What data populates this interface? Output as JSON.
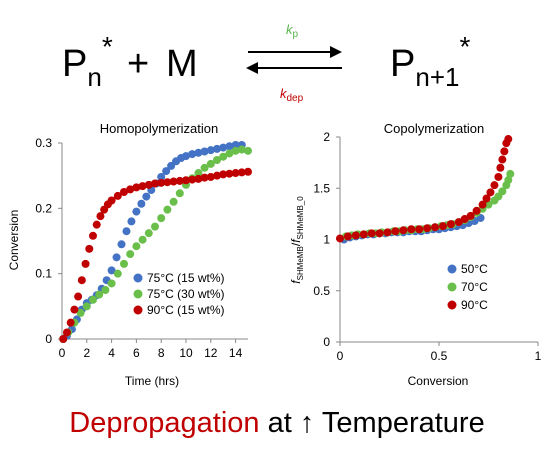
{
  "scheme": {
    "reactant_base": "P",
    "reactant_sub": "n",
    "reactant_sup": "*",
    "plus": "+",
    "monomer": "M",
    "product_base": "P",
    "product_sub": "n+1",
    "product_sup": "*",
    "kp_base": "k",
    "kp_sub": "p",
    "kp_color": "#55b54a",
    "kdep_base": "k",
    "kdep_sub": "dep",
    "kdep_color": "#c00000"
  },
  "footer": {
    "red_text": "Depropagation",
    "red_color": "#c00000",
    "black_text": "at",
    "arrow": "↑",
    "tail_text": "Temperature"
  },
  "chart_data": [
    {
      "type": "scatter",
      "title": "Homopolymerization",
      "xlabel": "Time (hrs)",
      "ylabel": "Conversion",
      "xlim": [
        0,
        15
      ],
      "ylim": [
        0,
        0.3
      ],
      "xticks": [
        "0",
        "2",
        "4",
        "6",
        "8",
        "10",
        "12",
        "14"
      ],
      "yticks": [
        "0",
        "0.1",
        "0.2",
        "0.3"
      ],
      "legend_position": "bottom-right",
      "series": [
        {
          "name": "75°C (15 wt%)",
          "color": "#4472c4",
          "points": [
            [
              0.1,
              0.0
            ],
            [
              0.4,
              0.005
            ],
            [
              0.8,
              0.015
            ],
            [
              1.2,
              0.03
            ],
            [
              1.6,
              0.045
            ],
            [
              2.0,
              0.055
            ],
            [
              2.4,
              0.06
            ],
            [
              2.8,
              0.067
            ],
            [
              3.2,
              0.077
            ],
            [
              3.6,
              0.09
            ],
            [
              4.0,
              0.105
            ],
            [
              4.4,
              0.125
            ],
            [
              4.8,
              0.145
            ],
            [
              5.2,
              0.165
            ],
            [
              5.6,
              0.18
            ],
            [
              6.0,
              0.195
            ],
            [
              6.4,
              0.207
            ],
            [
              6.8,
              0.218
            ],
            [
              7.2,
              0.228
            ],
            [
              7.6,
              0.238
            ],
            [
              8.0,
              0.248
            ],
            [
              8.4,
              0.257
            ],
            [
              8.8,
              0.265
            ],
            [
              9.2,
              0.272
            ],
            [
              9.6,
              0.277
            ],
            [
              10.0,
              0.28
            ],
            [
              10.5,
              0.283
            ],
            [
              11.0,
              0.285
            ],
            [
              11.5,
              0.287
            ],
            [
              12.0,
              0.289
            ],
            [
              12.5,
              0.291
            ],
            [
              13.0,
              0.293
            ],
            [
              13.5,
              0.295
            ],
            [
              14.0,
              0.297
            ],
            [
              14.5,
              0.297
            ]
          ]
        },
        {
          "name": "75°C (30 wt%)",
          "color": "#6abf4b",
          "points": [
            [
              0.1,
              0.0
            ],
            [
              0.5,
              0.01
            ],
            [
              1.0,
              0.025
            ],
            [
              1.5,
              0.04
            ],
            [
              2.0,
              0.05
            ],
            [
              2.5,
              0.06
            ],
            [
              3.0,
              0.068
            ],
            [
              3.5,
              0.075
            ],
            [
              4.0,
              0.085
            ],
            [
              4.5,
              0.1
            ],
            [
              5.0,
              0.115
            ],
            [
              5.5,
              0.13
            ],
            [
              6.0,
              0.142
            ],
            [
              6.5,
              0.152
            ],
            [
              7.0,
              0.162
            ],
            [
              7.5,
              0.172
            ],
            [
              8.0,
              0.185
            ],
            [
              8.5,
              0.198
            ],
            [
              9.0,
              0.21
            ],
            [
              9.5,
              0.223
            ],
            [
              10.0,
              0.236
            ],
            [
              10.5,
              0.246
            ],
            [
              11.0,
              0.254
            ],
            [
              11.5,
              0.262
            ],
            [
              12.0,
              0.268
            ],
            [
              12.5,
              0.274
            ],
            [
              13.0,
              0.279
            ],
            [
              13.5,
              0.284
            ],
            [
              14.0,
              0.288
            ],
            [
              14.5,
              0.29
            ],
            [
              15.0,
              0.288
            ]
          ]
        },
        {
          "name": "90°C (15 wt%)",
          "color": "#c00000",
          "points": [
            [
              0.1,
              0.0
            ],
            [
              0.4,
              0.01
            ],
            [
              0.7,
              0.025
            ],
            [
              1.0,
              0.045
            ],
            [
              1.3,
              0.065
            ],
            [
              1.6,
              0.09
            ],
            [
              1.9,
              0.115
            ],
            [
              2.2,
              0.138
            ],
            [
              2.5,
              0.158
            ],
            [
              2.8,
              0.175
            ],
            [
              3.1,
              0.188
            ],
            [
              3.4,
              0.198
            ],
            [
              3.7,
              0.206
            ],
            [
              4.0,
              0.212
            ],
            [
              4.5,
              0.219
            ],
            [
              5.0,
              0.225
            ],
            [
              5.5,
              0.229
            ],
            [
              6.0,
              0.232
            ],
            [
              6.5,
              0.234
            ],
            [
              7.0,
              0.236
            ],
            [
              7.5,
              0.238
            ],
            [
              8.0,
              0.239
            ],
            [
              8.5,
              0.24
            ],
            [
              9.0,
              0.241
            ],
            [
              9.5,
              0.242
            ],
            [
              10.0,
              0.243
            ],
            [
              10.5,
              0.244
            ],
            [
              11.0,
              0.245
            ],
            [
              11.5,
              0.247
            ],
            [
              12.0,
              0.248
            ],
            [
              12.5,
              0.25
            ],
            [
              13.0,
              0.252
            ],
            [
              13.5,
              0.253
            ],
            [
              14.0,
              0.254
            ],
            [
              14.5,
              0.255
            ],
            [
              15.0,
              0.256
            ]
          ]
        }
      ]
    },
    {
      "type": "scatter",
      "title": "Copolymerization",
      "xlabel": "Conversion",
      "ylabel_parts": {
        "f1": "f",
        "f1_sub": "SHMeMB",
        "slash": "/",
        "f2": "f",
        "f2_sub": "SHMeMB_0"
      },
      "xlim": [
        0,
        1
      ],
      "ylim": [
        0,
        2
      ],
      "xticks": [
        "0",
        "0.5",
        "1"
      ],
      "yticks": [
        "0",
        "0.5",
        "1",
        "1.5",
        "2"
      ],
      "legend_position": "bottom-right",
      "series": [
        {
          "name": "50°C",
          "color": "#4472c4",
          "points": [
            [
              0.02,
              1.0
            ],
            [
              0.05,
              1.02
            ],
            [
              0.08,
              1.03
            ],
            [
              0.11,
              1.04
            ],
            [
              0.14,
              1.05
            ],
            [
              0.17,
              1.05
            ],
            [
              0.2,
              1.06
            ],
            [
              0.23,
              1.06
            ],
            [
              0.26,
              1.07
            ],
            [
              0.29,
              1.07
            ],
            [
              0.32,
              1.07
            ],
            [
              0.35,
              1.08
            ],
            [
              0.38,
              1.08
            ],
            [
              0.41,
              1.08
            ],
            [
              0.44,
              1.09
            ],
            [
              0.47,
              1.1
            ],
            [
              0.5,
              1.1
            ],
            [
              0.53,
              1.11
            ],
            [
              0.56,
              1.12
            ],
            [
              0.59,
              1.13
            ],
            [
              0.62,
              1.14
            ],
            [
              0.65,
              1.16
            ],
            [
              0.68,
              1.18
            ],
            [
              0.71,
              1.21
            ]
          ]
        },
        {
          "name": "70°C",
          "color": "#6abf4b",
          "points": [
            [
              0.03,
              1.03
            ],
            [
              0.06,
              1.04
            ],
            [
              0.09,
              1.05
            ],
            [
              0.12,
              1.05
            ],
            [
              0.15,
              1.06
            ],
            [
              0.18,
              1.06
            ],
            [
              0.21,
              1.07
            ],
            [
              0.24,
              1.07
            ],
            [
              0.27,
              1.08
            ],
            [
              0.3,
              1.08
            ],
            [
              0.33,
              1.09
            ],
            [
              0.36,
              1.09
            ],
            [
              0.39,
              1.1
            ],
            [
              0.42,
              1.1
            ],
            [
              0.45,
              1.11
            ],
            [
              0.48,
              1.12
            ],
            [
              0.51,
              1.13
            ],
            [
              0.54,
              1.14
            ],
            [
              0.57,
              1.15
            ],
            [
              0.6,
              1.17
            ],
            [
              0.63,
              1.19
            ],
            [
              0.66,
              1.22
            ],
            [
              0.69,
              1.26
            ],
            [
              0.72,
              1.3
            ],
            [
              0.75,
              1.34
            ],
            [
              0.78,
              1.38
            ],
            [
              0.8,
              1.42
            ],
            [
              0.82,
              1.47
            ],
            [
              0.84,
              1.53
            ],
            [
              0.85,
              1.58
            ],
            [
              0.86,
              1.64
            ]
          ]
        },
        {
          "name": "90°C",
          "color": "#c00000",
          "points": [
            [
              0.0,
              1.01
            ],
            [
              0.04,
              1.03
            ],
            [
              0.08,
              1.04
            ],
            [
              0.12,
              1.05
            ],
            [
              0.16,
              1.06
            ],
            [
              0.2,
              1.06
            ],
            [
              0.24,
              1.07
            ],
            [
              0.28,
              1.08
            ],
            [
              0.32,
              1.09
            ],
            [
              0.36,
              1.1
            ],
            [
              0.4,
              1.1
            ],
            [
              0.44,
              1.11
            ],
            [
              0.48,
              1.12
            ],
            [
              0.52,
              1.13
            ],
            [
              0.56,
              1.15
            ],
            [
              0.6,
              1.17
            ],
            [
              0.63,
              1.2
            ],
            [
              0.66,
              1.23
            ],
            [
              0.69,
              1.28
            ],
            [
              0.72,
              1.34
            ],
            [
              0.74,
              1.4
            ],
            [
              0.76,
              1.46
            ],
            [
              0.78,
              1.53
            ],
            [
              0.8,
              1.61
            ],
            [
              0.81,
              1.7
            ],
            [
              0.82,
              1.78
            ],
            [
              0.83,
              1.86
            ],
            [
              0.84,
              1.94
            ],
            [
              0.85,
              1.98
            ]
          ]
        }
      ]
    }
  ]
}
